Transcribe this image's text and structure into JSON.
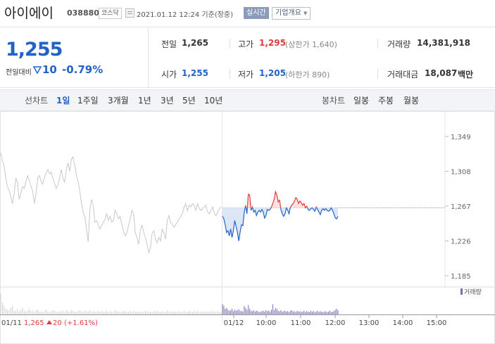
{
  "header": {
    "name": "아이에이",
    "code": "038880",
    "market": "코스닥",
    "date": "2021.01.12 12:24 기준(장중)",
    "realtime": "실시간",
    "company_info": "기업개요"
  },
  "quote": {
    "price": "1,255",
    "prev_label": "전일대비",
    "change": "10",
    "change_pct": "-0.79%",
    "prev_close_label": "전일",
    "prev_close": "1,265",
    "open_label": "시가",
    "open": "1,255",
    "high_label": "고가",
    "high": "1,295",
    "upper_limit": "(상한가 1,640)",
    "low_label": "저가",
    "low": "1,205",
    "lower_limit": "(하한가 890)",
    "volume_label": "거래량",
    "volume": "14,381,918",
    "amount_label": "거래대금",
    "amount": "18,087",
    "amount_unit": "백만"
  },
  "tabs": {
    "line_label": "선차트",
    "line_periods": [
      "1일",
      "1주일",
      "3개월",
      "1년",
      "3년",
      "5년",
      "10년"
    ],
    "candle_label": "봉차트",
    "candle_periods": [
      "일봉",
      "주봉",
      "월봉"
    ]
  },
  "colors": {
    "up": "#e03c3c",
    "down": "#2263c7",
    "gray": "#c8c8c8"
  },
  "chart_data": {
    "type": "line",
    "y_ticks": [
      "1,349",
      "1,308",
      "1,267",
      "1,226",
      "1,185"
    ],
    "ylim": [
      1185,
      1349
    ],
    "x_ticks": [
      "01/12",
      "10:00",
      "11:00",
      "12:00",
      "13:00",
      "14:00",
      "15:00"
    ],
    "volume_legend": "거래량",
    "baseline": 1265,
    "prev_day_label": "01/11",
    "prev_day_close": "1,265",
    "prev_day_change": "20",
    "prev_day_pct": "(+1.61%)",
    "series": [
      {
        "day": "01/11",
        "values": [
          1330,
          1320,
          1315,
          1300,
          1290,
          1285,
          1278,
          1270,
          1282,
          1300,
          1295,
          1275,
          1282,
          1290,
          1288,
          1296,
          1303,
          1297,
          1290,
          1285,
          1270,
          1282,
          1300,
          1303,
          1296,
          1293,
          1301,
          1306,
          1310,
          1305,
          1307,
          1300,
          1294,
          1288,
          1292,
          1300,
          1310,
          1300,
          1295,
          1310,
          1318,
          1308,
          1322,
          1325,
          1315,
          1303,
          1296,
          1285,
          1270,
          1260,
          1255,
          1240,
          1225,
          1262,
          1275,
          1268,
          1248,
          1250,
          1245,
          1240,
          1244,
          1248,
          1251,
          1258,
          1250,
          1255,
          1248,
          1250,
          1262,
          1258,
          1252,
          1255,
          1245,
          1238,
          1232,
          1236,
          1244,
          1252,
          1262,
          1258,
          1236,
          1230,
          1222,
          1238,
          1245,
          1236,
          1230,
          1222,
          1212,
          1218,
          1235,
          1238,
          1228,
          1224,
          1230,
          1226,
          1240,
          1235,
          1228,
          1250,
          1256,
          1247,
          1246,
          1242,
          1245,
          1248,
          1252,
          1255,
          1258,
          1266,
          1270,
          1262,
          1268,
          1266,
          1270,
          1268,
          1262,
          1270,
          1264,
          1262,
          1264,
          1266,
          1268,
          1260,
          1258,
          1262,
          1266,
          1258,
          1256,
          1260,
          1264,
          1266
        ]
      },
      {
        "day": "01/12",
        "values": [
          1255,
          1252,
          1245,
          1236,
          1238,
          1232,
          1240,
          1230,
          1238,
          1250,
          1243,
          1236,
          1226,
          1237,
          1245,
          1244,
          1260,
          1268,
          1258,
          1281,
          1280,
          1262,
          1266,
          1260,
          1262,
          1256,
          1260,
          1262,
          1260,
          1263,
          1260,
          1253,
          1256,
          1263,
          1262,
          1263,
          1266,
          1270,
          1275,
          1284,
          1280,
          1272,
          1274,
          1263,
          1258,
          1255,
          1258,
          1265,
          1262,
          1258,
          1266,
          1268,
          1270,
          1273,
          1277,
          1275,
          1270,
          1273,
          1271,
          1268,
          1270,
          1265,
          1267,
          1263,
          1262,
          1264,
          1265,
          1263,
          1261,
          1266,
          1263,
          1260,
          1257,
          1262,
          1264,
          1262,
          1264,
          1262,
          1261,
          1262,
          1265,
          1262,
          1258,
          1253,
          1252,
          1255
        ]
      }
    ],
    "volume_bars_day1": [
      45,
      25,
      18,
      12,
      10,
      9,
      14,
      18,
      8,
      7,
      12,
      6,
      10,
      14,
      8,
      6,
      9,
      12,
      7,
      8,
      5,
      9,
      11,
      6,
      7,
      5,
      8,
      10,
      6,
      5,
      7,
      9,
      8,
      6,
      5,
      7,
      6,
      8,
      5,
      9,
      7,
      6,
      10,
      8,
      6,
      5,
      7,
      9,
      6,
      5,
      8,
      7,
      6,
      9,
      5,
      7,
      6,
      5,
      8,
      6,
      7,
      5,
      6,
      8,
      5,
      7,
      6,
      5,
      9,
      6,
      7,
      5,
      6,
      8,
      7,
      5,
      6,
      7,
      5,
      8,
      6,
      5,
      7,
      6,
      5,
      6,
      8,
      7,
      5,
      6,
      5,
      7,
      6,
      8,
      5,
      6,
      7,
      5,
      6,
      8,
      6,
      5,
      7,
      6,
      5,
      6,
      7,
      5,
      6,
      8,
      5,
      6,
      7,
      6,
      5,
      7,
      6,
      8,
      5,
      6,
      7,
      5,
      6,
      5,
      7,
      6,
      8,
      5,
      6,
      7,
      5,
      6
    ],
    "volume_bars_day2": [
      22,
      18,
      12,
      14,
      10,
      8,
      9,
      12,
      7,
      10,
      8,
      9,
      11,
      7,
      8,
      6,
      18,
      14,
      10,
      20,
      12,
      8,
      7,
      9,
      6,
      8,
      7,
      5,
      6,
      7,
      8,
      6,
      9,
      7,
      8,
      6,
      10,
      22,
      9,
      14,
      12,
      8,
      7,
      9,
      6,
      7,
      8,
      6,
      7,
      5,
      8,
      9,
      6,
      7,
      5,
      8,
      6,
      7,
      5,
      6,
      8,
      5,
      7,
      6,
      5,
      8,
      6,
      7,
      5,
      6,
      8,
      5,
      7,
      6,
      5,
      6,
      7,
      5,
      6,
      8,
      5,
      6,
      7,
      10,
      12,
      9
    ]
  }
}
